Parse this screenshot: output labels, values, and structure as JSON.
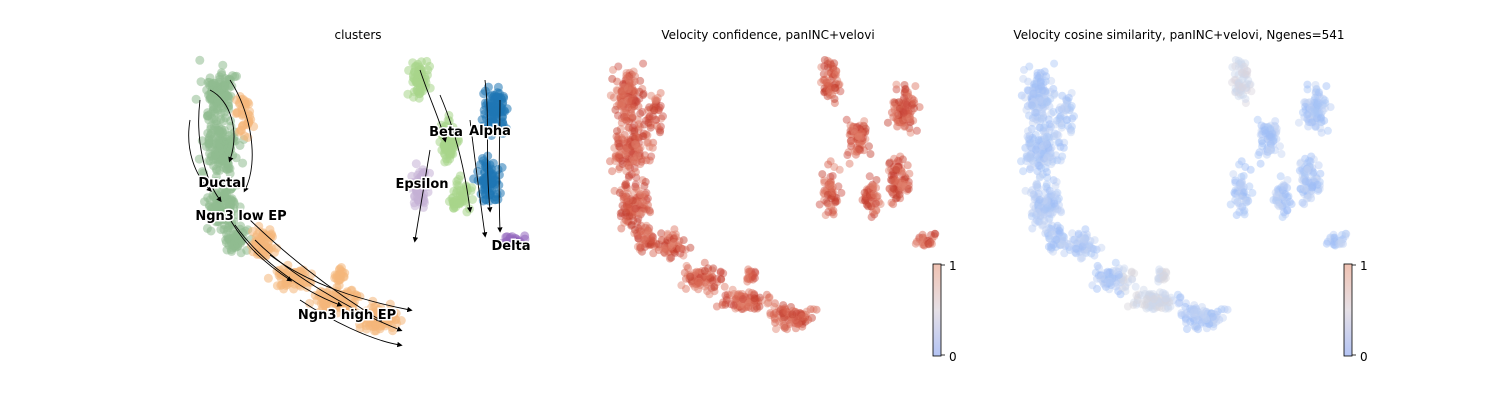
{
  "chart_data": [
    {
      "type": "scatter",
      "subtype": "umap-velocity-stream",
      "title": "clusters",
      "clusters": [
        {
          "name": "Ductal",
          "color": "#8fbc8f"
        },
        {
          "name": "Ngn3 low EP",
          "color": "#8fbc8f"
        },
        {
          "name": "Ngn3 high EP",
          "color": "#f4b67a"
        },
        {
          "name": "Beta",
          "color": "#a8d58a"
        },
        {
          "name": "Alpha",
          "color": "#1f77b4"
        },
        {
          "name": "Epsilon",
          "color": "#c5b0d5"
        },
        {
          "name": "Delta",
          "color": "#9467bd"
        }
      ],
      "stream_color": "#000000",
      "colorbar": false
    },
    {
      "type": "scatter",
      "subtype": "umap-continuous",
      "title": "Velocity confidence, panINC+velovi",
      "colormap": "coolwarm",
      "point_color": "#d2503f",
      "colorbar": {
        "min": 0,
        "max": 1,
        "ticks": [
          "0",
          "1"
        ]
      }
    },
    {
      "type": "scatter",
      "subtype": "umap-continuous",
      "title": "Velocity cosine similarity, panINC+velovi, Ngenes=541",
      "colormap": "coolwarm",
      "point_color": "#a9c6f7",
      "colorbar": {
        "min": 0,
        "max": 1,
        "ticks": [
          "0",
          "1"
        ]
      }
    }
  ]
}
